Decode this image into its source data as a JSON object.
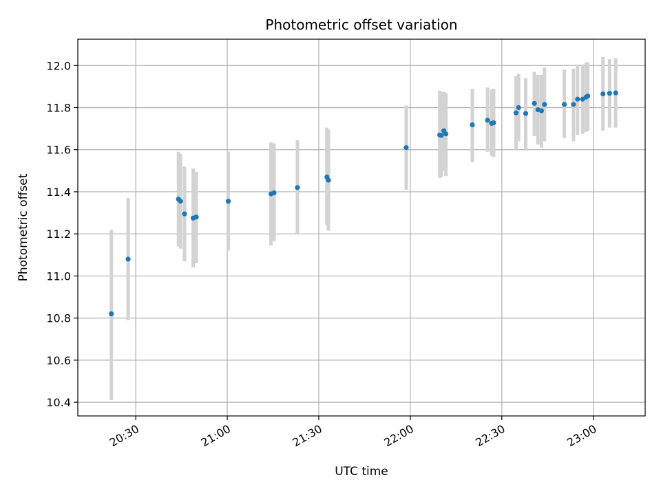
{
  "chart_data": {
    "type": "scatter",
    "title": "Photometric offset variation",
    "xlabel": "UTC time",
    "ylabel": "Photometric offset",
    "xlim": [
      "20:11",
      "23:17"
    ],
    "ylim": [
      10.335,
      12.125
    ],
    "grid": true,
    "x_ticks": [
      "20:30",
      "21:00",
      "21:30",
      "22:00",
      "22:30",
      "23:00"
    ],
    "y_ticks": [
      10.4,
      10.6,
      10.8,
      11.0,
      11.2,
      11.4,
      11.6,
      11.8,
      12.0
    ],
    "y_tick_labels": [
      "10.4",
      "10.6",
      "10.8",
      "11.0",
      "11.2",
      "11.4",
      "11.6",
      "11.8",
      "12.0"
    ],
    "point_color": "#1f77b4",
    "errorbar_color": "#d3d3d3",
    "points": [
      {
        "x": "20:22:00",
        "y": 10.82,
        "ylow": 10.41,
        "yhigh": 11.22
      },
      {
        "x": "20:27:30",
        "y": 11.08,
        "ylow": 10.79,
        "yhigh": 11.37
      },
      {
        "x": "20:44:00",
        "y": 11.365,
        "ylow": 11.14,
        "yhigh": 11.59
      },
      {
        "x": "20:44:40",
        "y": 11.355,
        "ylow": 11.13,
        "yhigh": 11.58
      },
      {
        "x": "20:46:00",
        "y": 11.295,
        "ylow": 11.07,
        "yhigh": 11.52
      },
      {
        "x": "20:48:50",
        "y": 11.275,
        "ylow": 11.04,
        "yhigh": 11.51
      },
      {
        "x": "20:49:50",
        "y": 11.28,
        "ylow": 11.06,
        "yhigh": 11.495
      },
      {
        "x": "21:00:20",
        "y": 11.355,
        "ylow": 11.12,
        "yhigh": 11.59
      },
      {
        "x": "21:14:20",
        "y": 11.39,
        "ylow": 11.145,
        "yhigh": 11.635
      },
      {
        "x": "21:15:20",
        "y": 11.395,
        "ylow": 11.165,
        "yhigh": 11.63
      },
      {
        "x": "21:23:00",
        "y": 11.42,
        "ylow": 11.2,
        "yhigh": 11.645
      },
      {
        "x": "21:32:40",
        "y": 11.47,
        "ylow": 11.24,
        "yhigh": 11.705
      },
      {
        "x": "21:33:10",
        "y": 11.455,
        "ylow": 11.215,
        "yhigh": 11.695
      },
      {
        "x": "21:58:40",
        "y": 11.61,
        "ylow": 11.41,
        "yhigh": 11.81
      },
      {
        "x": "22:09:40",
        "y": 11.67,
        "ylow": 11.465,
        "yhigh": 11.88
      },
      {
        "x": "22:10:10",
        "y": 11.668,
        "ylow": 11.47,
        "yhigh": 11.875
      },
      {
        "x": "22:11:00",
        "y": 11.69,
        "ylow": 11.5,
        "yhigh": 11.875
      },
      {
        "x": "22:11:40",
        "y": 11.675,
        "ylow": 11.475,
        "yhigh": 11.87
      },
      {
        "x": "22:20:20",
        "y": 11.718,
        "ylow": 11.54,
        "yhigh": 11.89
      },
      {
        "x": "22:25:20",
        "y": 11.74,
        "ylow": 11.59,
        "yhigh": 11.895
      },
      {
        "x": "22:26:40",
        "y": 11.725,
        "ylow": 11.57,
        "yhigh": 11.885
      },
      {
        "x": "22:27:20",
        "y": 11.728,
        "ylow": 11.565,
        "yhigh": 11.89
      },
      {
        "x": "22:34:40",
        "y": 11.775,
        "ylow": 11.6,
        "yhigh": 11.95
      },
      {
        "x": "22:35:30",
        "y": 11.8,
        "ylow": 11.64,
        "yhigh": 11.96
      },
      {
        "x": "22:37:50",
        "y": 11.772,
        "ylow": 11.6,
        "yhigh": 11.94
      },
      {
        "x": "22:40:40",
        "y": 11.82,
        "ylow": 11.665,
        "yhigh": 11.97
      },
      {
        "x": "22:41:50",
        "y": 11.79,
        "ylow": 11.625,
        "yhigh": 11.955
      },
      {
        "x": "22:43:00",
        "y": 11.785,
        "ylow": 11.61,
        "yhigh": 11.955
      },
      {
        "x": "22:44:00",
        "y": 11.815,
        "ylow": 11.64,
        "yhigh": 11.99
      },
      {
        "x": "22:50:30",
        "y": 11.815,
        "ylow": 11.655,
        "yhigh": 11.98
      },
      {
        "x": "22:53:30",
        "y": 11.815,
        "ylow": 11.64,
        "yhigh": 11.985
      },
      {
        "x": "22:54:50",
        "y": 11.84,
        "ylow": 11.67,
        "yhigh": 12.005
      },
      {
        "x": "22:56:30",
        "y": 11.84,
        "ylow": 11.675,
        "yhigh": 12.005
      },
      {
        "x": "22:57:40",
        "y": 11.85,
        "ylow": 11.685,
        "yhigh": 12.015
      },
      {
        "x": "22:58:10",
        "y": 11.855,
        "ylow": 11.69,
        "yhigh": 12.015
      },
      {
        "x": "23:03:10",
        "y": 11.865,
        "ylow": 11.69,
        "yhigh": 12.04
      },
      {
        "x": "23:05:20",
        "y": 11.868,
        "ylow": 11.705,
        "yhigh": 12.03
      },
      {
        "x": "23:07:20",
        "y": 11.87,
        "ylow": 11.705,
        "yhigh": 12.035
      }
    ]
  }
}
